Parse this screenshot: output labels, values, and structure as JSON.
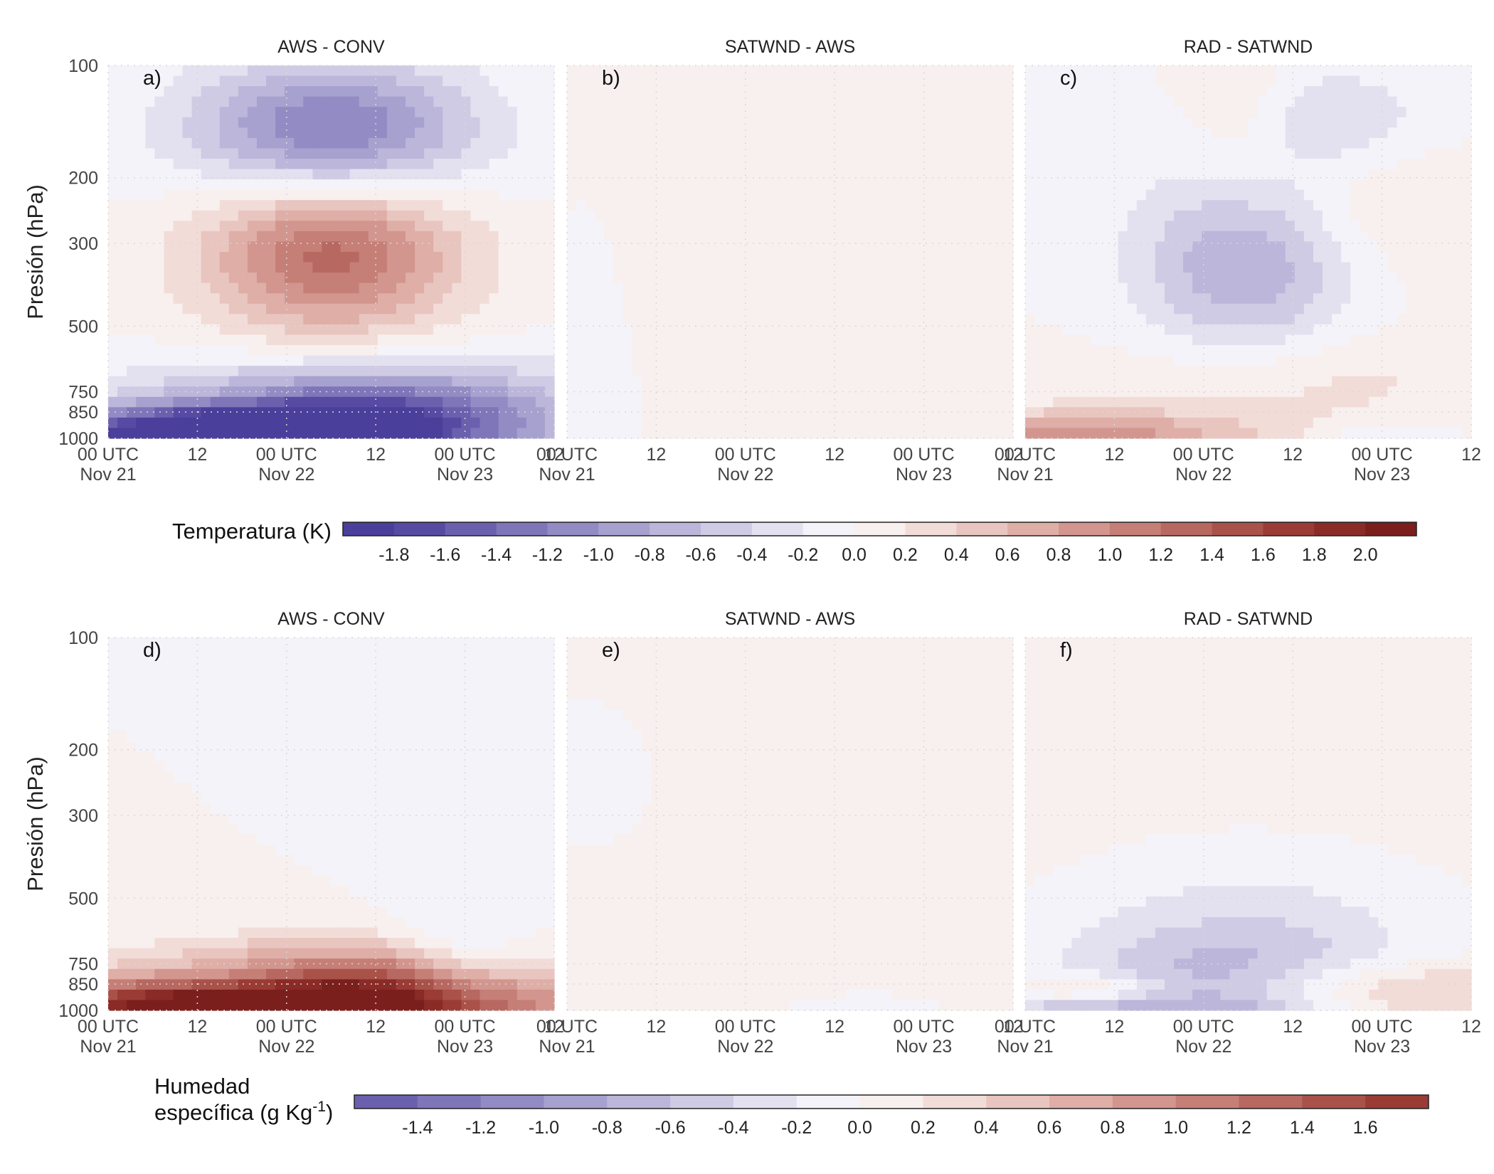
{
  "chart_data": [
    {
      "type": "heatmap",
      "row": "temperature",
      "panels": [
        {
          "id": "a",
          "panel_label": "a)",
          "title": "AWS - CONV",
          "features": [
            {
              "t": 30,
              "p": 150,
              "v": -1.3,
              "sx": 0.22,
              "sy": 0.13
            },
            {
              "t": 30,
              "p": 320,
              "v": 1.3,
              "sx": 0.2,
              "sy": 0.15
            },
            {
              "t": 8,
              "p": 990,
              "v": -1.5,
              "sx": 0.26,
              "sy": 0.05
            },
            {
              "t": 23,
              "p": 985,
              "v": -0.9,
              "sx": 0.22,
              "sy": 0.05
            },
            {
              "t": 34,
              "p": 930,
              "v": -1.4,
              "sx": 0.3,
              "sy": 0.09
            },
            {
              "t": 36,
              "p": 800,
              "v": -0.5,
              "sx": 0.4,
              "sy": 0.09
            },
            {
              "t": 18,
              "p": 780,
              "v": 0.2,
              "sx": 0.05,
              "sy": 0.02
            }
          ]
        },
        {
          "id": "b",
          "panel_label": "b)",
          "title": "SATWND - AWS",
          "features": [
            {
              "t": 20,
              "p": 300,
              "v": 0.1,
              "sx": 0.7,
              "sy": 0.5
            },
            {
              "t": 3,
              "p": 400,
              "v": -0.1,
              "sx": 0.18,
              "sy": 0.5
            }
          ]
        },
        {
          "id": "c",
          "panel_label": "c)",
          "title": "RAD - SATWND",
          "features": [
            {
              "t": 30,
              "p": 330,
              "v": -0.9,
              "sx": 0.17,
              "sy": 0.18
            },
            {
              "t": 29,
              "p": 130,
              "v": 0.25,
              "sx": 0.08,
              "sy": 0.2
            },
            {
              "t": 43,
              "p": 240,
              "v": 0.3,
              "sx": 0.2,
              "sy": 0.15
            },
            {
              "t": 42,
              "p": 140,
              "v": -0.4,
              "sx": 0.15,
              "sy": 0.1
            },
            {
              "t": 8,
              "p": 990,
              "v": 0.9,
              "sx": 0.27,
              "sy": 0.05
            },
            {
              "t": 36,
              "p": 700,
              "v": 0.3,
              "sx": 0.3,
              "sy": 0.1
            },
            {
              "t": 48,
              "p": 1000,
              "v": -0.3,
              "sx": 0.1,
              "sy": 0.03
            }
          ]
        }
      ],
      "colorbar": {
        "label": "Temperatura (K)",
        "boundaries": [
          -2.0,
          -1.8,
          -1.6,
          -1.4,
          -1.2,
          -1.0,
          -0.8,
          -0.6,
          -0.4,
          -0.2,
          0.0,
          0.2,
          0.4,
          0.6,
          0.8,
          1.0,
          1.2,
          1.4,
          1.6,
          1.8,
          2.0,
          2.2
        ],
        "tick_labels": [
          "-1.8",
          "-1.6",
          "-1.4",
          "-1.2",
          "-1.0",
          "-0.8",
          "-0.6",
          "-0.4",
          "-0.2",
          "0.0",
          "0.2",
          "0.4",
          "0.6",
          "0.8",
          "1.0",
          "1.2",
          "1.4",
          "1.6",
          "1.8",
          "2.0"
        ],
        "tick_values": [
          -1.8,
          -1.6,
          -1.4,
          -1.2,
          -1.0,
          -0.8,
          -0.6,
          -0.4,
          -0.2,
          0.0,
          0.2,
          0.4,
          0.6,
          0.8,
          1.0,
          1.2,
          1.4,
          1.6,
          1.8,
          2.0
        ]
      }
    },
    {
      "type": "heatmap",
      "row": "humidity",
      "panels": [
        {
          "id": "d",
          "panel_label": "d)",
          "title": "AWS - CONV",
          "features": [
            {
              "t": 13,
              "p": 1000,
              "v": 2.0,
              "sx": 0.3,
              "sy": 0.06
            },
            {
              "t": 37,
              "p": 990,
              "v": 1.7,
              "sx": 0.32,
              "sy": 0.08
            },
            {
              "t": 28,
              "p": 760,
              "v": 0.6,
              "sx": 0.28,
              "sy": 0.06
            },
            {
              "t": 18,
              "p": 830,
              "v": -0.5,
              "sx": 0.15,
              "sy": 0.04
            },
            {
              "t": 48,
              "p": 750,
              "v": -0.4,
              "sx": 0.1,
              "sy": 0.12
            }
          ]
        },
        {
          "id": "e",
          "panel_label": "e)",
          "title": "SATWND - AWS",
          "features": [
            {
              "t": 30,
              "p": 300,
              "v": 0.1,
              "sx": 0.8,
              "sy": 0.6
            },
            {
              "t": 5,
              "p": 250,
              "v": -0.1,
              "sx": 0.25,
              "sy": 0.3
            },
            {
              "t": 40,
              "p": 1000,
              "v": -0.2,
              "sx": 0.12,
              "sy": 0.03
            }
          ]
        },
        {
          "id": "f",
          "panel_label": "f)",
          "title": "RAD - SATWND",
          "features": [
            {
              "t": 27,
              "p": 950,
              "v": -0.8,
              "sx": 0.25,
              "sy": 0.11
            },
            {
              "t": 30,
              "p": 650,
              "v": -0.4,
              "sx": 0.3,
              "sy": 0.18
            },
            {
              "t": 44,
              "p": 900,
              "v": 0.7,
              "sx": 0.3,
              "sy": 0.06
            },
            {
              "t": 9,
              "p": 880,
              "v": 0.5,
              "sx": 0.13,
              "sy": 0.03
            },
            {
              "t": 6,
              "p": 1010,
              "v": -0.4,
              "sx": 0.25,
              "sy": 0.03
            },
            {
              "t": 30,
              "p": 300,
              "v": 0.1,
              "sx": 0.9,
              "sy": 0.4
            }
          ]
        }
      ],
      "colorbar": {
        "label_line1": "Humedad",
        "label_line2": "específica (g Kg",
        "label_sup": "-1",
        "label_close": ")",
        "boundaries": [
          -1.6,
          -1.4,
          -1.2,
          -1.0,
          -0.8,
          -0.6,
          -0.4,
          -0.2,
          0.0,
          0.2,
          0.4,
          0.6,
          0.8,
          1.0,
          1.2,
          1.4,
          1.6,
          1.8
        ],
        "tick_labels": [
          "-1.4",
          "-1.2",
          "-1.0",
          "-0.8",
          "-0.6",
          "-0.4",
          "-0.2",
          "0.0",
          "0.2",
          "0.4",
          "0.6",
          "0.8",
          "1.0",
          "1.2",
          "1.4",
          "1.6"
        ],
        "tick_values": [
          -1.4,
          -1.2,
          -1.0,
          -0.8,
          -0.6,
          -0.4,
          -0.2,
          0.0,
          0.2,
          0.4,
          0.6,
          0.8,
          1.0,
          1.2,
          1.4,
          1.6
        ]
      }
    }
  ],
  "axes": {
    "ylabel": "Presión (hPa)",
    "y_scale": "log",
    "y_range": [
      1000,
      100
    ],
    "y_ticks": [
      100,
      200,
      300,
      500,
      750,
      850,
      1000
    ],
    "y_tick_labels": [
      "100",
      "200",
      "300",
      "500",
      "750",
      "850",
      "1000"
    ],
    "x_range_hours": [
      0,
      60
    ],
    "x_ticks": [
      {
        "hour": 0,
        "line1": "00 UTC",
        "line2": "Nov 21"
      },
      {
        "hour": 12,
        "line1": "12",
        "line2": ""
      },
      {
        "hour": 24,
        "line1": "00 UTC",
        "line2": "Nov 22"
      },
      {
        "hour": 36,
        "line1": "12",
        "line2": ""
      },
      {
        "hour": 48,
        "line1": "00 UTC",
        "line2": "Nov 23"
      },
      {
        "hour": 60,
        "line1": "12",
        "line2": ""
      }
    ]
  },
  "colors": {
    "ramp_neg": [
      "#f4f3f9",
      "#e3e1ef",
      "#cfcbe4",
      "#bbb6da",
      "#a7a1cf",
      "#938bc4",
      "#7f75b9",
      "#6b60ae",
      "#574aa3",
      "#4a3f9a"
    ],
    "ramp_pos": [
      "#f8f0ee",
      "#f2dcd8",
      "#e9c5c0",
      "#deaea7",
      "#d2968f",
      "#c57f77",
      "#b76860",
      "#a9524a",
      "#9a3c35",
      "#8a2b27",
      "#7b1f1d"
    ]
  }
}
